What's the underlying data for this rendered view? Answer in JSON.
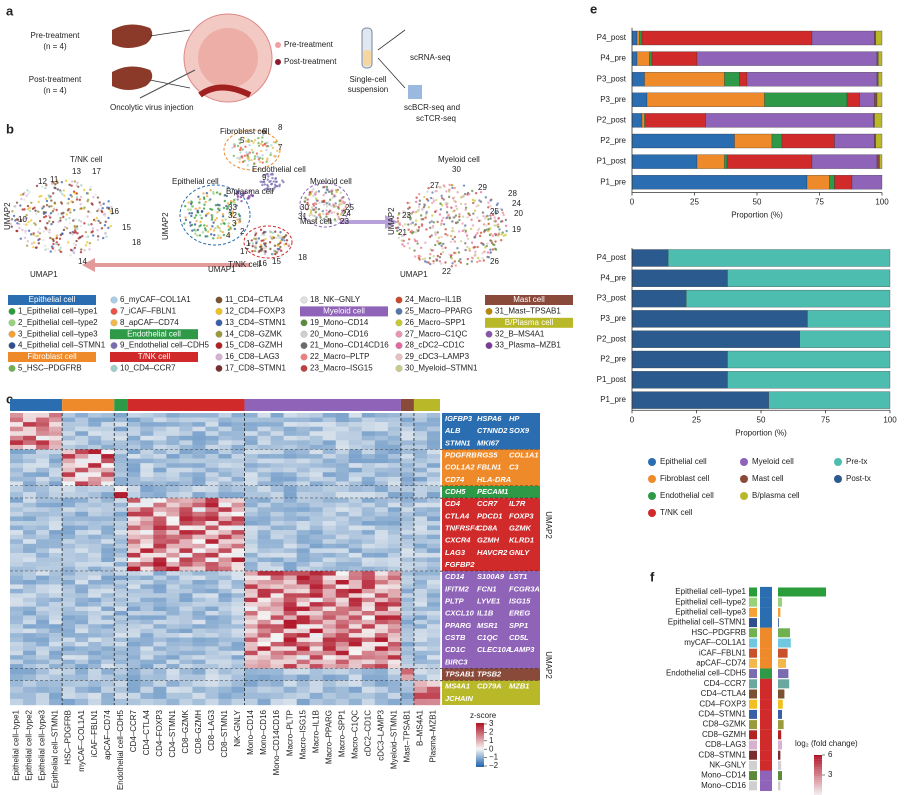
{
  "panel_a": {
    "label": "a",
    "pre": "Pre-treatment",
    "pre_n": "(n = 4)",
    "post": "Post-treatment",
    "post_n": "(n = 4)",
    "injection": "Oncolytic virus injection",
    "legend_pre": "Pre-treatment",
    "legend_post": "Post-treatment",
    "suspension": [
      "Single-cell",
      "suspension"
    ],
    "rna": "scRNA-seq",
    "bcr": [
      "scBCR-seq and",
      "scTCR-seq"
    ]
  },
  "panel_b": {
    "label": "b",
    "umap_x": "UMAP1",
    "umap_y": "UMAP2",
    "tnk": "T/NK cell",
    "fibroblast": "Fibroblast cell",
    "epithelial": "Epithelial cell",
    "bplasma": "B/plasma cell",
    "endothelial": "Endothelial cell",
    "myeloid": "Myeloid cell",
    "mast": "Mast cell",
    "tnk_mid": "T/NK cell",
    "myeloid_right": "Myeloid cell",
    "left_clusters": [
      "12",
      "11",
      "13",
      "17",
      "10",
      "16",
      "15",
      "18",
      "14"
    ],
    "mid_clusters": [
      "8",
      "5",
      "7",
      "6",
      "9",
      "33",
      "32",
      "3",
      "4",
      "2",
      "1",
      "31",
      "30",
      "23",
      "25",
      "24",
      "17",
      "15",
      "16",
      "18"
    ],
    "right_clusters": [
      "30",
      "27",
      "29",
      "28",
      "24",
      "20",
      "25",
      "19",
      "23",
      "21",
      "26",
      "22"
    ]
  },
  "legend": {
    "columns": [
      [
        {
          "label": "Epithelial cell",
          "color": "#2a6db0",
          "header": true
        },
        {
          "label": "1_Epithelial cell–type1",
          "color": "#2a9d3a"
        },
        {
          "label": "2_Epithelial cell–type2",
          "color": "#98d27a"
        },
        {
          "label": "3_Epithelial cell–type3",
          "color": "#f4a236"
        },
        {
          "label": "4_Epithelial cell–STMN1",
          "color": "#2f4f8f"
        },
        {
          "label": "Fibroblast cell",
          "color": "#ef8a2a",
          "header": true
        },
        {
          "label": "5_HSC–PDGFRB",
          "color": "#6fb050"
        }
      ],
      [
        {
          "label": "6_myCAF–COL1A1",
          "color": "#a8cde8"
        },
        {
          "label": "7_iCAF–FBLN1",
          "color": "#e8534a"
        },
        {
          "label": "8_apCAF–CD74",
          "color": "#f3b84c"
        },
        {
          "label": "Endothelial cell",
          "color": "#2e9a48",
          "header": true
        },
        {
          "label": "9_Endothelial cell–CDH5",
          "color": "#7b6cb0"
        },
        {
          "label": "T/NK cell",
          "color": "#d02a2a",
          "header": true
        },
        {
          "label": "10_CD4–CCR7",
          "color": "#9ad0c6"
        }
      ],
      [
        {
          "label": "11_CD4–CTLA4",
          "color": "#7a5230"
        },
        {
          "label": "12_CD4–FOXP3",
          "color": "#f0c020"
        },
        {
          "label": "13_CD4–STMN1",
          "color": "#3a5ea8"
        },
        {
          "label": "14_CD8–GZMK",
          "color": "#9a9a3a"
        },
        {
          "label": "15_CD8–GZMH",
          "color": "#b22222"
        },
        {
          "label": "16_CD8–LAG3",
          "color": "#d8b0d0"
        },
        {
          "label": "17_CD8–STMN1",
          "color": "#7b2d2d"
        }
      ],
      [
        {
          "label": "18_NK–GNLY",
          "color": "#e0e0e0"
        },
        {
          "label": "Myeloid cell",
          "color": "#8f63b8",
          "header": true
        },
        {
          "label": "19_Mono–CD14",
          "color": "#5a8a3a"
        },
        {
          "label": "20_Mono–CD16",
          "color": "#cfcfcf"
        },
        {
          "label": "21_Mono–CD14CD16",
          "color": "#6a6a6a"
        },
        {
          "label": "22_Macro–PLTP",
          "color": "#f08080"
        },
        {
          "label": "23_Macro–ISG15",
          "color": "#c04040"
        }
      ],
      [
        {
          "label": "24_Macro–IL1B",
          "color": "#c84a2a"
        },
        {
          "label": "25_Macro–PPARG",
          "color": "#5577aa"
        },
        {
          "label": "26_Macro–SPP1",
          "color": "#c8c830"
        },
        {
          "label": "27_Macro–C1QC",
          "color": "#e896b0"
        },
        {
          "label": "28_cDC2–CD1C",
          "color": "#e06aa0"
        },
        {
          "label": "29_cDC3–LAMP3",
          "color": "#e8c0c0"
        },
        {
          "label": "30_Myeloid–STMN1",
          "color": "#caca8a"
        }
      ],
      [
        {
          "label": "Mast cell",
          "color": "#8a4a3a",
          "header": true
        },
        {
          "label": "31_Mast–TPSAB1",
          "color": "#b8860b"
        },
        {
          "label": "B/Plasma cell",
          "color": "#b8b828",
          "header": true
        },
        {
          "label": "32_B–MS4A1",
          "color": "#8855aa"
        },
        {
          "label": "33_Plasma–MZB1",
          "color": "#7a3a9a"
        }
      ]
    ]
  },
  "heatmap": {
    "label": "c",
    "column_groups": [
      {
        "color": "#2a6db0",
        "columns": [
          "Epithelial cell–type1",
          "Epithelial cell–type2",
          "Epithelial cell–type3",
          "Epithelial cell–STMN1"
        ]
      },
      {
        "color": "#ef8a2a",
        "columns": [
          "HSC–PDGFRB",
          "myCAF–COL1A1",
          "iCAF–FBLN1",
          "apCAF–CD74"
        ]
      },
      {
        "color": "#2e9a48",
        "columns": [
          "Endothelial cell–CDH5"
        ]
      },
      {
        "color": "#d02a2a",
        "columns": [
          "CD4–CCR7",
          "CD4–CTLA4",
          "CD4–FOXP3",
          "CD4–STMN1",
          "CD8–GZMK",
          "CD8–GZMH",
          "CD8–LAG3",
          "CD8–STMN1",
          "NK–GNLY"
        ]
      },
      {
        "color": "#8f63b8",
        "columns": [
          "Mono–CD14",
          "Mono–CD16",
          "Mono–CD14CD16",
          "Macro–PLTP",
          "Macro–ISG15",
          "Macro–IL1B",
          "Macro–PPARG",
          "Macro–SPP1",
          "Macro–C1QC",
          "cDC2–CD1C",
          "cDC3–LAMP3",
          "Myeloid–STMN1"
        ]
      },
      {
        "color": "#8a4a3a",
        "columns": [
          "Mast–TPSAB1"
        ]
      },
      {
        "color": "#b8b828",
        "columns": [
          "B–MS4A1",
          "Plasma–MZB1"
        ]
      }
    ],
    "gene_groups": [
      {
        "color": "#2a6db0",
        "lines": [
          [
            "IGFBP3",
            "HSPA6",
            "HP"
          ],
          [
            "ALB",
            "CTNND2",
            "SOX9"
          ],
          [
            "STMN1",
            "MKI67"
          ]
        ]
      },
      {
        "color": "#ef8a2a",
        "lines": [
          [
            "PDGFRB",
            "RGS5",
            "COL1A1"
          ],
          [
            "COL1A2",
            "FBLN1",
            "C3"
          ],
          [
            "CD74",
            "HLA-DRA"
          ]
        ]
      },
      {
        "color": "#2e9a48",
        "lines": [
          [
            "CDH5",
            "PECAM1"
          ]
        ]
      },
      {
        "color": "#d02a2a",
        "lines": [
          [
            "CD4",
            "CCR7",
            "IL7R"
          ],
          [
            "CTLA4",
            "PDCD1",
            "FOXP3"
          ],
          [
            "TNFRSF4",
            "CD8A",
            "GZMK"
          ],
          [
            "CXCR4",
            "GZMH",
            "KLRD1"
          ],
          [
            "LAG3",
            "HAVCR2",
            "GNLY"
          ],
          [
            "FGFBP2"
          ]
        ]
      },
      {
        "color": "#8f63b8",
        "lines": [
          [
            "CD14",
            "S100A9",
            "LST1"
          ],
          [
            "IFITM2",
            "FCN1",
            "FCGR3A"
          ],
          [
            "PLTP",
            "LYVE1",
            "ISG15"
          ],
          [
            "CXCL10",
            "IL1B",
            "EREG"
          ],
          [
            "PPARG",
            "MSR1",
            "SPP1"
          ],
          [
            "CSTB",
            "C1QC",
            "CD5L"
          ],
          [
            "CD1C",
            "CLEC10A",
            "LAMP3"
          ],
          [
            "BIRC3"
          ]
        ]
      },
      {
        "color": "#8a4a3a",
        "lines": [
          [
            "TPSAB1",
            "TPSB2"
          ]
        ]
      },
      {
        "color": "#b8b828",
        "lines": [
          [
            "MS4A1",
            "CD79A",
            "MZB1"
          ],
          [
            "JCHAIN"
          ]
        ]
      }
    ],
    "side_labels": [
      "UMAP2",
      "UMAP2"
    ],
    "colorbar": {
      "title": "z-score",
      "ticks": [
        3,
        2,
        1,
        0,
        {
          "value": -1,
          "label": "−1"
        },
        {
          "value": -2,
          "label": "−2"
        }
      ]
    }
  },
  "panel_e_label": "e",
  "panel_f_label": "f",
  "chart_data": [
    {
      "type": "stacked_bar_horizontal",
      "categories": [
        "P4_post",
        "P4_pre",
        "P3_post",
        "P3_pre",
        "P2_post",
        "P2_pre",
        "P1_post",
        "P1_pre"
      ],
      "series": [
        {
          "name": "Epithelial cell",
          "color": "#2a6db0",
          "values": [
            2,
            2,
            5,
            6,
            4,
            41,
            26,
            70
          ]
        },
        {
          "name": "Fibroblast cell",
          "color": "#ef8a2a",
          "values": [
            1,
            5,
            32,
            47,
            1,
            15,
            11,
            9
          ]
        },
        {
          "name": "Endothelial cell",
          "color": "#2e9a48",
          "values": [
            1,
            1,
            6,
            33,
            0.5,
            4,
            1,
            2
          ]
        },
        {
          "name": "T/NK cell",
          "color": "#d02a2a",
          "values": [
            68,
            18,
            3,
            5,
            24,
            21,
            34,
            7
          ]
        },
        {
          "name": "Myeloid cell",
          "color": "#8f63b8",
          "values": [
            25,
            72,
            52,
            6,
            67,
            16,
            26,
            12
          ]
        },
        {
          "name": "Mast cell",
          "color": "#8a4a3a",
          "values": [
            0.5,
            0.5,
            0.5,
            1,
            0.5,
            0.5,
            1,
            0
          ]
        },
        {
          "name": "B/plasma cell",
          "color": "#b8b828",
          "values": [
            2.5,
            1.5,
            1.5,
            2,
            3,
            2.5,
            1,
            0
          ]
        }
      ],
      "xlim": [
        0,
        100
      ],
      "xticks": [
        0,
        25,
        50,
        75,
        100
      ],
      "xlabel": "Proportion (%)"
    },
    {
      "type": "stacked_bar_horizontal",
      "categories": [
        "P4_post",
        "P4_pre",
        "P3_post",
        "P3_pre",
        "P2_post",
        "P2_pre",
        "P1_post",
        "P1_pre"
      ],
      "series": [
        {
          "name": "Post-tx",
          "color": "#2b5b8e",
          "values": [
            14,
            37,
            21,
            68,
            65,
            37,
            37,
            53
          ]
        },
        {
          "name": "Pre-tx",
          "color": "#4dbdb0",
          "values": [
            86,
            63,
            79,
            32,
            35,
            63,
            63,
            47
          ]
        }
      ],
      "xlim": [
        0,
        100
      ],
      "xticks": [
        0,
        25,
        50,
        75,
        100
      ],
      "xlabel": "Proportion (%)"
    },
    {
      "type": "bar_horizontal",
      "categories": [
        "Epithelial cell–type1",
        "Epithelial cell–type2",
        "Epithelial cell–type3",
        "Epithelial cell–STMN1",
        "HSC–PDGFRB",
        "myCAF–COL1A1",
        "iCAF–FBLN1",
        "apCAF–CD74",
        "Endothelial cell–CDH5",
        "CD4–CCR7",
        "CD4–CTLA4",
        "CD4–FOXP3",
        "CD4–STMN1",
        "CD8–GZMK",
        "CD8–GZMH",
        "CD8–LAG3",
        "CD8–STMN1",
        "NK–GNLY",
        "Mono–CD14",
        "Mono–CD16"
      ],
      "values": [
        6,
        0.5,
        0.3,
        0.1,
        1.5,
        1.6,
        1.2,
        1.0,
        1.3,
        1.4,
        0.8,
        0.6,
        0.5,
        0.7,
        0.4,
        0.5,
        0.3,
        0.4,
        0.5,
        0.3
      ],
      "colors": [
        "#2a9d3a",
        "#98d27a",
        "#f4a236",
        "#2f4f8f",
        "#6fb050",
        "#6fc8e0",
        "#c8502a",
        "#f3b84c",
        "#7b6cb0",
        "#6aa8a0",
        "#7a5230",
        "#f0c020",
        "#3a5ea8",
        "#9a9a3a",
        "#b22222",
        "#d8b0d0",
        "#7b2d2d",
        "#d0d0d0",
        "#5a8a3a",
        "#cfcfcf"
      ],
      "group_colors": [
        "#2a6db0",
        "#2a6db0",
        "#2a6db0",
        "#2a6db0",
        "#ef8a2a",
        "#ef8a2a",
        "#ef8a2a",
        "#ef8a2a",
        "#2e9a48",
        "#d02a2a",
        "#d02a2a",
        "#d02a2a",
        "#d02a2a",
        "#d02a2a",
        "#d02a2a",
        "#d02a2a",
        "#d02a2a",
        "#d02a2a",
        "#8f63b8",
        "#8f63b8"
      ],
      "colorbar": {
        "title": "log₂ (fold change)",
        "ticks": [
          6,
          3
        ]
      }
    }
  ]
}
